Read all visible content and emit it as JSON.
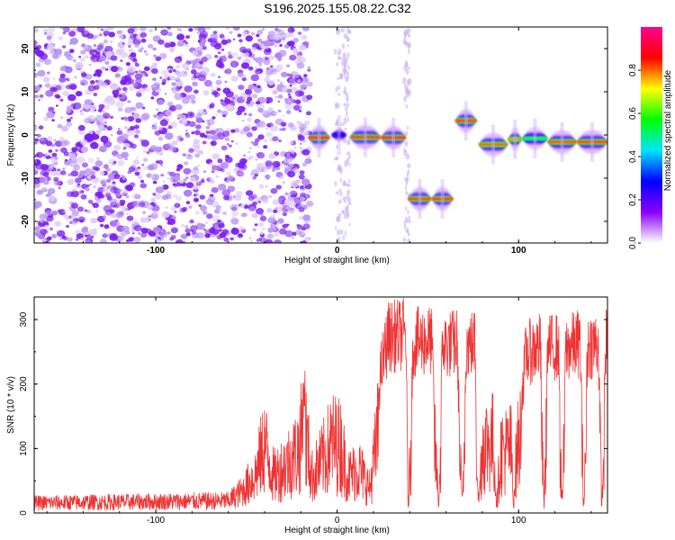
{
  "figure": {
    "title": "S196.2025.155.08.22.C32"
  },
  "chart_data": [
    {
      "type": "heatmap",
      "xlabel": "Height of straight line (km)",
      "ylabel": "Frequency (Hz)",
      "xlim": [
        -167,
        149
      ],
      "ylim": [
        -25,
        25
      ],
      "x_ticks": [
        "-100",
        "0",
        "100"
      ],
      "y_ticks": [
        "-20",
        "-10",
        "0",
        "10",
        "20"
      ],
      "colorbar": {
        "label": "Normalized spectral amplitude",
        "range": [
          0,
          1
        ],
        "ticks": [
          "0.0",
          "0.2",
          "0.4",
          "0.6",
          "0.8"
        ],
        "colors": [
          "#ffffff",
          "#8a00ff",
          "#0000ff",
          "#00e5ff",
          "#00ff00",
          "#ffff00",
          "#ff0000",
          "#ff0090"
        ]
      },
      "noise_region": {
        "x": [
          -167,
          -15
        ],
        "amplitude": 0.25
      },
      "segments": [
        {
          "x": [
            -16,
            -4
          ],
          "freq": -0.6,
          "amplitude": 0.95
        },
        {
          "x": [
            -3,
            5
          ],
          "freq": 0.0,
          "amplitude": 0.3
        },
        {
          "x": [
            7,
            24
          ],
          "freq": -0.5,
          "amplitude": 0.92
        },
        {
          "x": [
            24,
            38
          ],
          "freq": -0.6,
          "amplitude": 0.95
        },
        {
          "x": [
            39,
            52
          ],
          "freq": -14.8,
          "amplitude": 0.9
        },
        {
          "x": [
            52,
            64
          ],
          "freq": -14.8,
          "amplitude": 0.92
        },
        {
          "x": [
            65,
            77
          ],
          "freq": 3.3,
          "amplitude": 0.92
        },
        {
          "x": [
            78,
            94
          ],
          "freq": -2.2,
          "amplitude": 0.85
        },
        {
          "x": [
            94,
            102
          ],
          "freq": -1.0,
          "amplitude": 0.8
        },
        {
          "x": [
            102,
            116
          ],
          "freq": -0.8,
          "amplitude": 0.6
        },
        {
          "x": [
            116,
            132
          ],
          "freq": -1.6,
          "amplitude": 0.88
        },
        {
          "x": [
            132,
            149
          ],
          "freq": -1.6,
          "amplitude": 0.9
        }
      ]
    },
    {
      "type": "line",
      "xlabel": "Height of straight line (km)",
      "ylabel": "SNR (10 * v/v)",
      "xlim": [
        -167,
        149
      ],
      "ylim": [
        0,
        335
      ],
      "x_ticks": [
        "-100",
        "0",
        "100"
      ],
      "y_ticks": [
        "0",
        "100",
        "200",
        "300"
      ],
      "color": "#ee3333",
      "envelope": [
        {
          "x": -167,
          "snr": 25
        },
        {
          "x": -60,
          "snr": 30
        },
        {
          "x": -52,
          "snr": 55
        },
        {
          "x": -45,
          "snr": 95
        },
        {
          "x": -40,
          "snr": 170
        },
        {
          "x": -35,
          "snr": 90
        },
        {
          "x": -28,
          "snr": 120
        },
        {
          "x": -22,
          "snr": 150
        },
        {
          "x": -18,
          "snr": 215
        },
        {
          "x": -14,
          "snr": 90
        },
        {
          "x": -8,
          "snr": 130
        },
        {
          "x": -3,
          "snr": 175
        },
        {
          "x": 2,
          "snr": 165
        },
        {
          "x": 6,
          "snr": 90
        },
        {
          "x": 12,
          "snr": 110
        },
        {
          "x": 18,
          "snr": 60
        },
        {
          "x": 24,
          "snr": 240
        },
        {
          "x": 28,
          "snr": 300
        },
        {
          "x": 38,
          "snr": 305
        },
        {
          "x": 39,
          "snr": 20
        },
        {
          "x": 42,
          "snr": 290
        },
        {
          "x": 52,
          "snr": 295
        },
        {
          "x": 56,
          "snr": 20
        },
        {
          "x": 58,
          "snr": 285
        },
        {
          "x": 66,
          "snr": 290
        },
        {
          "x": 69,
          "snr": 20
        },
        {
          "x": 71,
          "snr": 285
        },
        {
          "x": 76,
          "snr": 290
        },
        {
          "x": 78,
          "snr": 20
        },
        {
          "x": 80,
          "snr": 170
        },
        {
          "x": 86,
          "snr": 175
        },
        {
          "x": 88,
          "snr": 20
        },
        {
          "x": 90,
          "snr": 150
        },
        {
          "x": 96,
          "snr": 160
        },
        {
          "x": 97,
          "snr": 20
        },
        {
          "x": 99,
          "snr": 150
        },
        {
          "x": 102,
          "snr": 210
        },
        {
          "x": 104,
          "snr": 270
        },
        {
          "x": 112,
          "snr": 285
        },
        {
          "x": 114,
          "snr": 20
        },
        {
          "x": 116,
          "snr": 280
        },
        {
          "x": 122,
          "snr": 285
        },
        {
          "x": 124,
          "snr": 20
        },
        {
          "x": 126,
          "snr": 280
        },
        {
          "x": 134,
          "snr": 290
        },
        {
          "x": 136,
          "snr": 20
        },
        {
          "x": 138,
          "snr": 285
        },
        {
          "x": 144,
          "snr": 290
        },
        {
          "x": 146,
          "snr": 20
        },
        {
          "x": 148,
          "snr": 290
        }
      ]
    }
  ]
}
